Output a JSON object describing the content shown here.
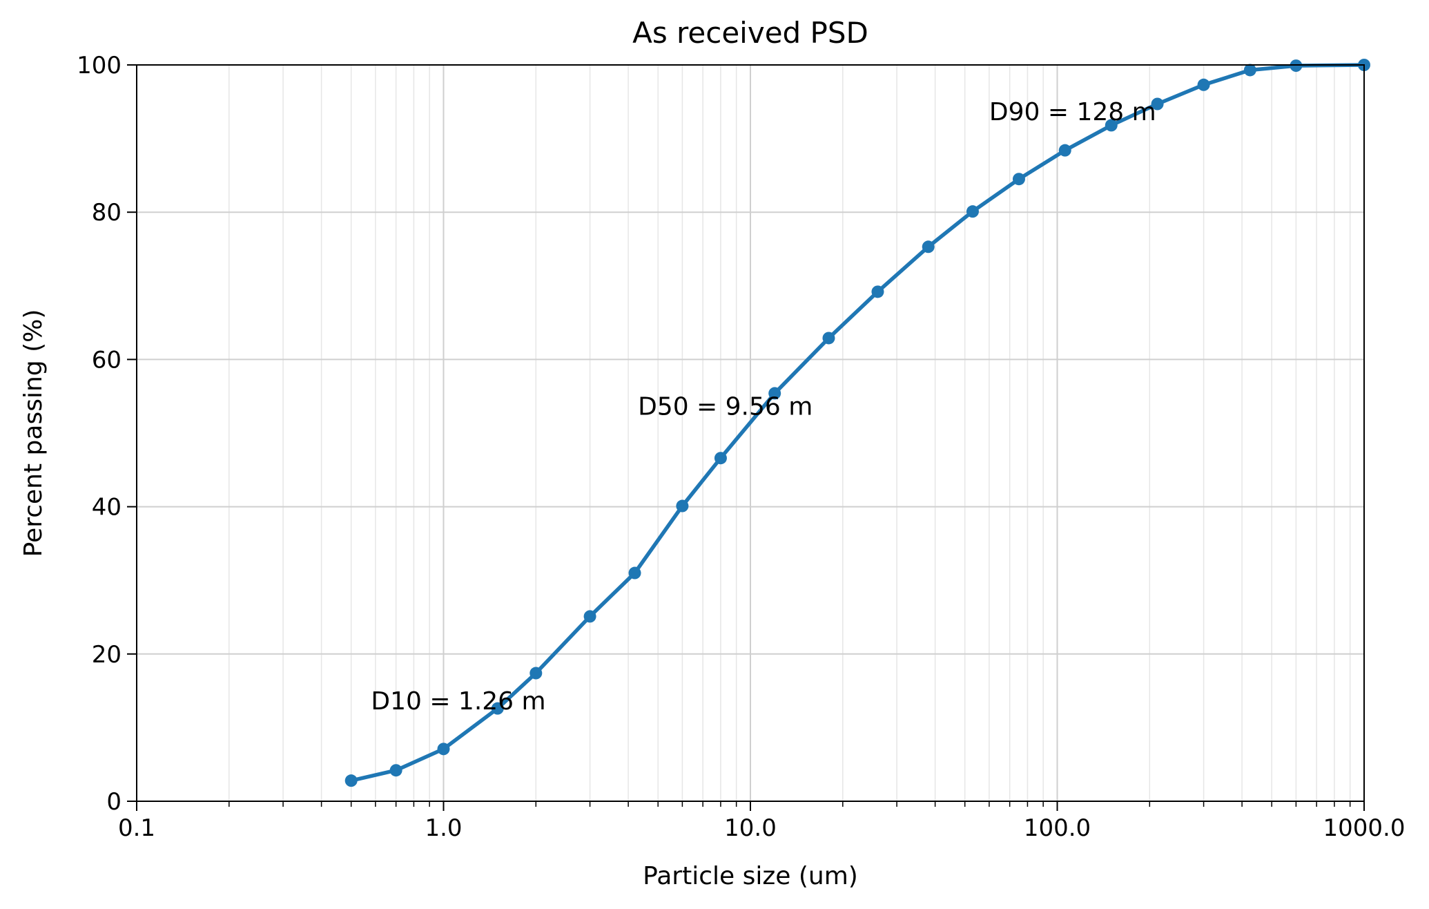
{
  "chart_data": {
    "type": "line",
    "title": "As received PSD",
    "xlabel": "Particle size (um)",
    "ylabel": "Percent passing (%)",
    "x_scale": "log",
    "xlim": [
      0.1,
      1000
    ],
    "ylim": [
      0,
      100
    ],
    "grid": true,
    "x_ticks": [
      {
        "value": 0.1,
        "label": "0.1"
      },
      {
        "value": 1,
        "label": "1.0"
      },
      {
        "value": 10,
        "label": "10.0"
      },
      {
        "value": 100,
        "label": "100.0"
      },
      {
        "value": 1000,
        "label": "1000.0"
      }
    ],
    "y_ticks": [
      {
        "value": 0,
        "label": "0"
      },
      {
        "value": 20,
        "label": "20"
      },
      {
        "value": 40,
        "label": "40"
      },
      {
        "value": 60,
        "label": "60"
      },
      {
        "value": 80,
        "label": "80"
      },
      {
        "value": 100,
        "label": "100"
      }
    ],
    "series": [
      {
        "color": "#1f77b4",
        "x": [
          0.5,
          0.7,
          1.0,
          1.5,
          2.0,
          3.0,
          4.2,
          6.0,
          8.0,
          12.0,
          18.0,
          26.0,
          38.0,
          53.0,
          75.0,
          106.0,
          150.0,
          212.0,
          300.0,
          425.0,
          600.0,
          1000.0
        ],
        "y": [
          2.8,
          4.2,
          7.1,
          12.6,
          17.4,
          25.1,
          31.0,
          40.1,
          46.6,
          55.4,
          62.9,
          69.2,
          75.3,
          80.1,
          84.5,
          88.4,
          91.8,
          94.7,
          97.3,
          99.3,
          99.9,
          100.0
        ]
      }
    ],
    "annotations": [
      {
        "text": "D10 = 1.26  m",
        "x": 0.58,
        "y": 12.5
      },
      {
        "text": "D50 = 9.56  m",
        "x": 4.3,
        "y": 52.5
      },
      {
        "text": "D90 = 128  m",
        "x": 60,
        "y": 92.5
      }
    ]
  }
}
